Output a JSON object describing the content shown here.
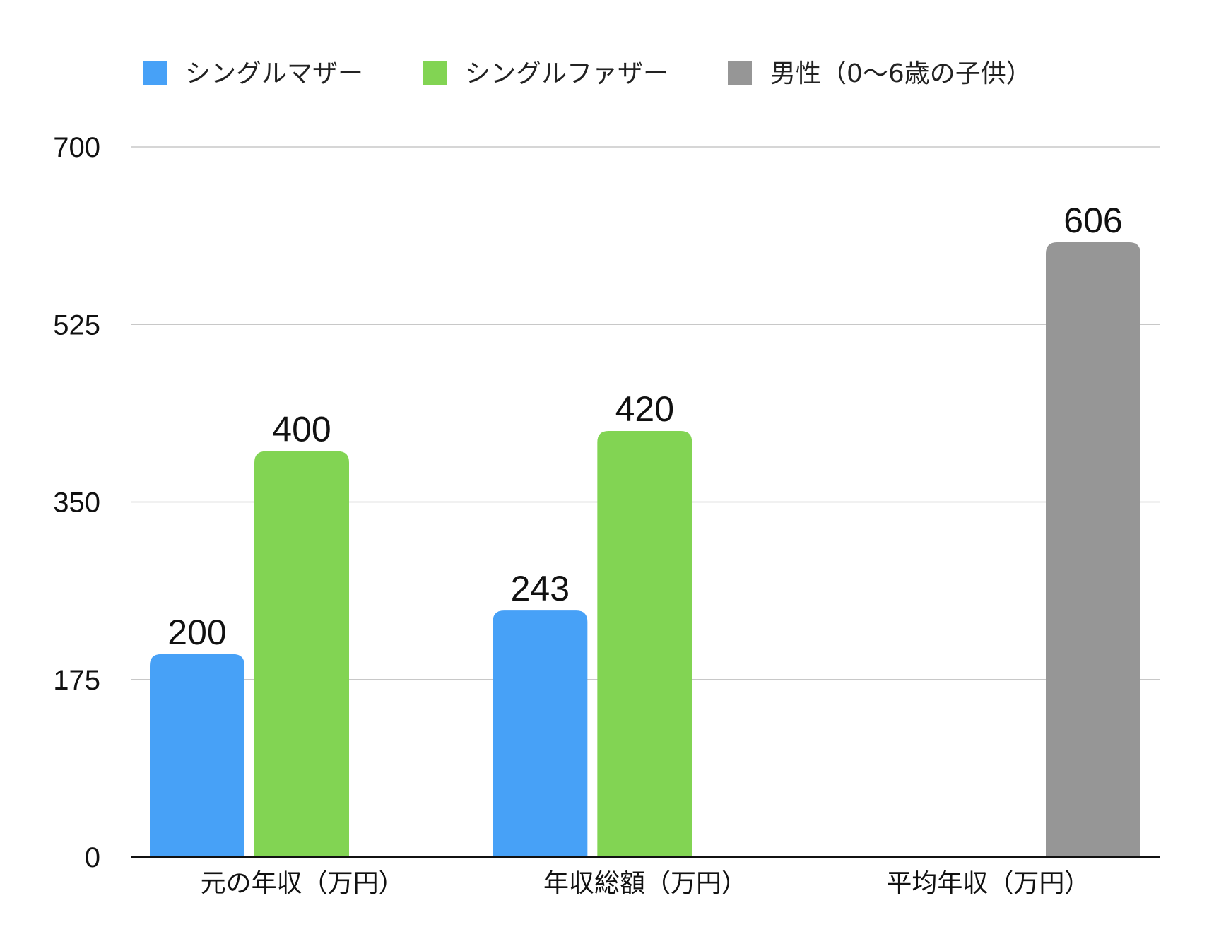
{
  "chart_data": {
    "type": "bar",
    "title": "",
    "xlabel": "",
    "ylabel": "",
    "categories": [
      "元の年収（万円）",
      "年収総額（万円）",
      "平均年収（万円）"
    ],
    "series": [
      {
        "name": "シングルマザー",
        "values": [
          200,
          243,
          null
        ],
        "color": "#47a1f7"
      },
      {
        "name": "シングルファザー",
        "values": [
          400,
          420,
          null
        ],
        "color": "#82d453"
      },
      {
        "name": "男性（0〜6歳の子供）",
        "values": [
          null,
          null,
          606
        ],
        "color": "#969696"
      }
    ],
    "ylim": [
      0,
      700
    ],
    "yticks": [
      "0",
      "175",
      "350",
      "525",
      "700"
    ],
    "grid": true,
    "legend_position": "top",
    "data_labels": true
  }
}
